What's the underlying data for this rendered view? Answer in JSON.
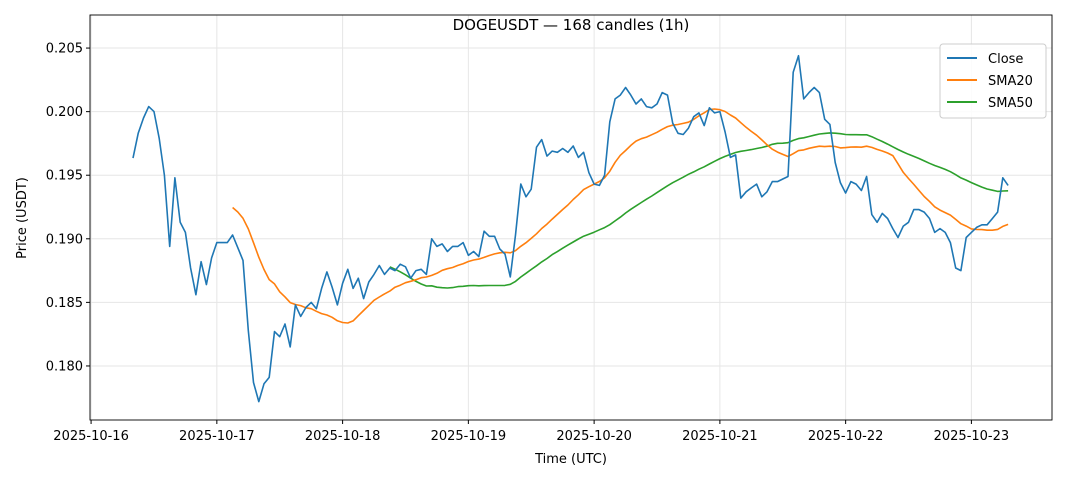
{
  "chart_data": {
    "type": "line",
    "title": "DOGEUSDT — 168 candles (1h)",
    "xlabel": "Time (UTC)",
    "ylabel": "Price (USDT)",
    "ylim": [
      0.17575,
      0.2076
    ],
    "yticks": [
      "0.180",
      "0.185",
      "0.190",
      "0.195",
      "0.200",
      "0.205"
    ],
    "ytick_values": [
      0.18,
      0.185,
      0.19,
      0.195,
      0.2,
      0.205
    ],
    "xticks": [
      "2025-10-16",
      "2025-10-17",
      "2025-10-18",
      "2025-10-19",
      "2025-10-20",
      "2025-10-21",
      "2025-10-22",
      "2025-10-23"
    ],
    "xtick_hours_from_start": [
      -8,
      16,
      40,
      64,
      88,
      112,
      136,
      160
    ],
    "x_start": "2025-10-16 08:00",
    "x_interval": "1h",
    "grid": true,
    "legend_position": "top-right",
    "series": [
      {
        "name": "Close",
        "color": "#1f77b4",
        "values": [
          0.19635,
          0.1983,
          0.1995,
          0.2004,
          0.2,
          0.1979,
          0.195,
          0.1894,
          0.1948,
          0.1913,
          0.1905,
          0.1877,
          0.1856,
          0.1882,
          0.1864,
          0.1885,
          0.1897,
          0.1897,
          0.1897,
          0.1903,
          0.1893,
          0.1883,
          0.1828,
          0.1787,
          0.1772,
          0.1786,
          0.1791,
          0.1827,
          0.1823,
          0.1833,
          0.1815,
          0.1848,
          0.1839,
          0.1846,
          0.185,
          0.1845,
          0.1861,
          0.1874,
          0.1862,
          0.1848,
          0.1865,
          0.1876,
          0.1861,
          0.1869,
          0.1853,
          0.1866,
          0.1872,
          0.1879,
          0.1872,
          0.1877,
          0.1875,
          0.188,
          0.1878,
          0.1869,
          0.1875,
          0.1876,
          0.1872,
          0.19,
          0.1894,
          0.1896,
          0.189,
          0.1894,
          0.1894,
          0.1897,
          0.1887,
          0.189,
          0.1886,
          0.1906,
          0.1902,
          0.1902,
          0.1892,
          0.1888,
          0.187,
          0.1903,
          0.1943,
          0.1933,
          0.1939,
          0.1972,
          0.1978,
          0.1965,
          0.1969,
          0.1968,
          0.1971,
          0.1968,
          0.1973,
          0.1964,
          0.1968,
          0.1952,
          0.1943,
          0.1942,
          0.195,
          0.1992,
          0.201,
          0.2013,
          0.2019,
          0.2013,
          0.2006,
          0.201,
          0.2004,
          0.2003,
          0.2006,
          0.2015,
          0.2013,
          0.1991,
          0.1983,
          0.1982,
          0.1987,
          0.1996,
          0.1999,
          0.1989,
          0.2003,
          0.1999,
          0.2,
          0.1984,
          0.1964,
          0.1966,
          0.1932,
          0.1937,
          0.194,
          0.1943,
          0.1933,
          0.1937,
          0.1945,
          0.1945,
          0.1947,
          0.1949,
          0.2031,
          0.2044,
          0.201,
          0.2015,
          0.2019,
          0.2015,
          0.1994,
          0.199,
          0.196,
          0.1944,
          0.1936,
          0.1945,
          0.1943,
          0.1938,
          0.1949,
          0.1919,
          0.1913,
          0.192,
          0.1916,
          0.1908,
          0.1901,
          0.191,
          0.1913,
          0.1923,
          0.1923,
          0.1921,
          0.1916,
          0.1905,
          0.1908,
          0.1905,
          0.1897,
          0.1877,
          0.1875,
          0.1901,
          0.1905,
          0.1909,
          0.1911,
          0.1911,
          0.1916,
          0.1921,
          0.1948,
          0.1942
        ]
      },
      {
        "name": "SMA20",
        "color": "#ff7f0e",
        "window": 20
      },
      {
        "name": "SMA50",
        "color": "#2ca02c",
        "window": 50
      }
    ]
  }
}
